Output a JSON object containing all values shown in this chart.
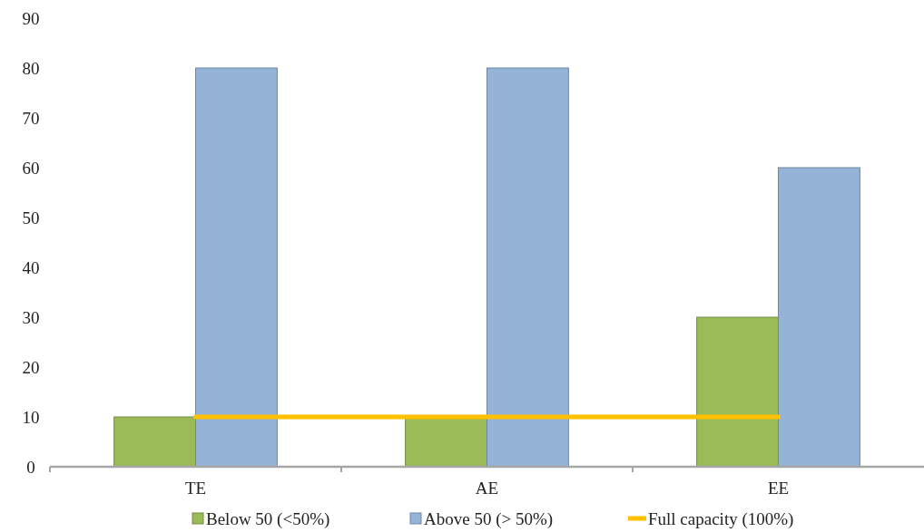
{
  "chart_data": {
    "type": "bar",
    "categories": [
      "TE",
      "AE",
      "EE"
    ],
    "series": [
      {
        "name": "Below 50 (<50%)",
        "color": "#9bbb59",
        "values": [
          10,
          10,
          30
        ]
      },
      {
        "name": "Above 50 (> 50%)",
        "color": "#95b3d7",
        "values": [
          80,
          80,
          60
        ]
      },
      {
        "name": "Full capacity (100%)",
        "type": "line",
        "color": "#ffc000",
        "values": [
          10,
          10,
          10
        ]
      }
    ],
    "ylim": [
      0,
      90
    ],
    "yticks": [
      0,
      10,
      20,
      30,
      40,
      50,
      60,
      70,
      80,
      90
    ],
    "grid": false,
    "legend": "bottom"
  }
}
